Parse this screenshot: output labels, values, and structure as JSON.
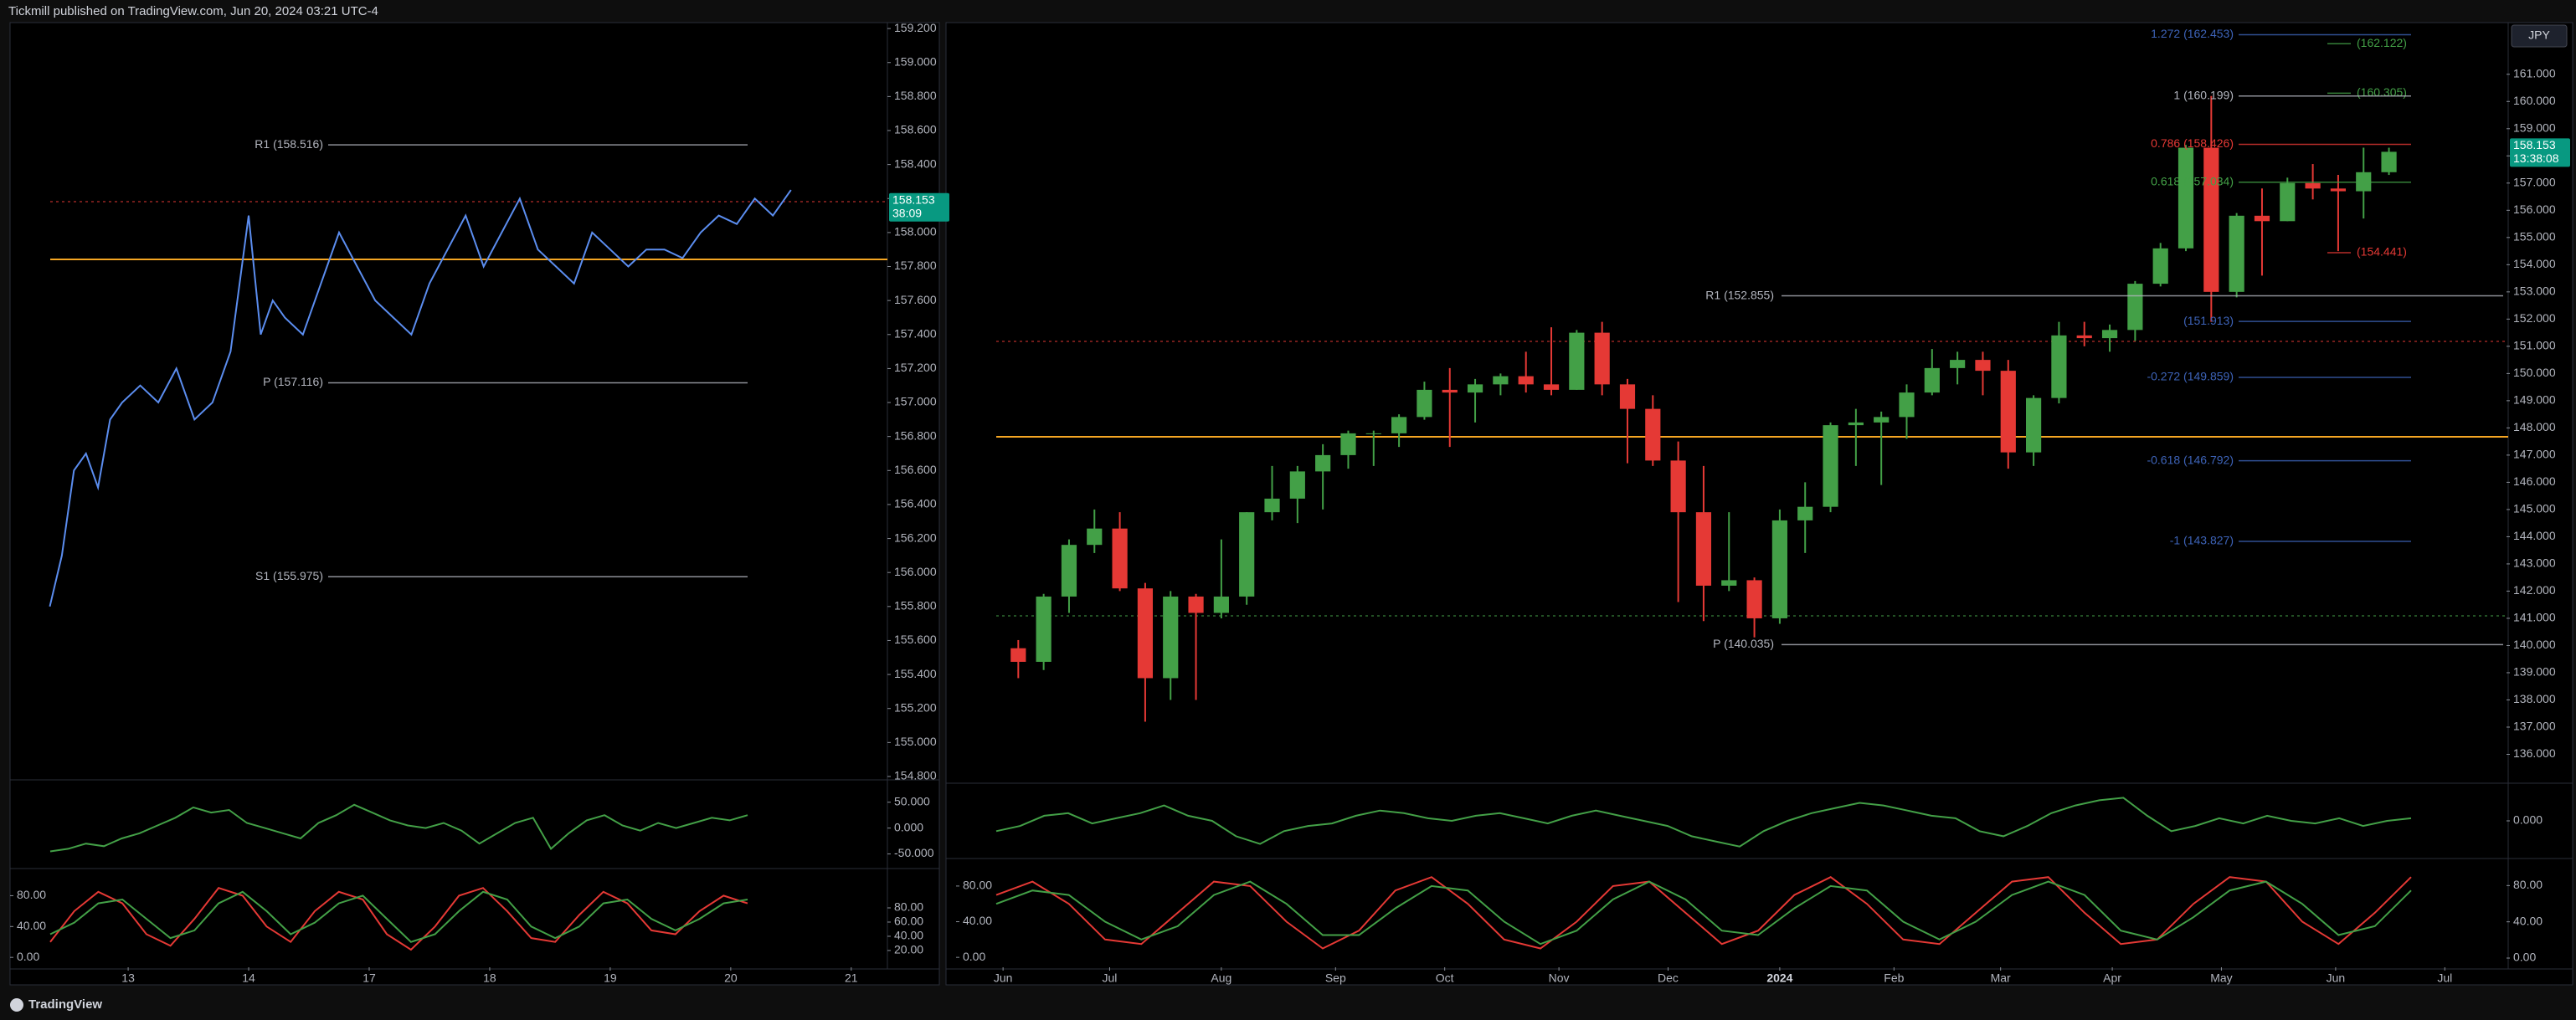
{
  "header": {
    "title": "Tickmill published on TradingView.com, Jun 20, 2024 03:21 UTC-4"
  },
  "footer": {
    "brand": "TradingView"
  },
  "chart_data": [
    {
      "type": "line",
      "color": "#5b8def",
      "x": [
        -0.65,
        -0.55,
        -0.45,
        -0.35,
        -0.25,
        -0.15,
        -0.05,
        0.1,
        0.25,
        0.4,
        0.55,
        0.7,
        0.85,
        1.0,
        1.1,
        1.2,
        1.3,
        1.45,
        1.6,
        1.75,
        1.9,
        2.05,
        2.2,
        2.35,
        2.5,
        2.65,
        2.8,
        2.95,
        3.1,
        3.25,
        3.4,
        3.55,
        3.7,
        3.85,
        4.0,
        4.15,
        4.3,
        4.45,
        4.6,
        4.75,
        4.9,
        5.05,
        5.2,
        5.35,
        5.5
      ],
      "values": [
        155.8,
        156.1,
        156.6,
        156.7,
        156.5,
        156.9,
        157.0,
        157.1,
        157.0,
        157.2,
        156.9,
        157.0,
        157.3,
        158.1,
        157.4,
        157.6,
        157.5,
        157.4,
        157.7,
        158.0,
        157.8,
        157.6,
        157.5,
        157.4,
        157.7,
        157.9,
        158.1,
        157.8,
        158.0,
        158.2,
        157.9,
        157.8,
        157.7,
        158.0,
        157.9,
        157.8,
        157.9,
        157.9,
        157.85,
        158.0,
        158.1,
        158.05,
        158.2,
        158.1,
        158.25
      ],
      "xlim": [
        -0.98,
        6.3
      ],
      "xticks": [
        {
          "value": 0,
          "label": "13"
        },
        {
          "value": 1,
          "label": "14"
        },
        {
          "value": 2,
          "label": "17"
        },
        {
          "value": 3,
          "label": "18"
        },
        {
          "value": 4,
          "label": "19"
        },
        {
          "value": 5,
          "label": "20"
        },
        {
          "value": 6,
          "label": "21"
        }
      ],
      "ylim": [
        154.79,
        159.235
      ],
      "yticks": [
        {
          "value": 154.8,
          "label": "154.800"
        },
        {
          "value": 155.0,
          "label": "155.000"
        },
        {
          "value": 155.2,
          "label": "155.200"
        },
        {
          "value": 155.4,
          "label": "155.400"
        },
        {
          "value": 155.6,
          "label": "155.600"
        },
        {
          "value": 155.8,
          "label": "155.800"
        },
        {
          "value": 156.0,
          "label": "156.000"
        },
        {
          "value": 156.2,
          "label": "156.200"
        },
        {
          "value": 156.4,
          "label": "156.400"
        },
        {
          "value": 156.6,
          "label": "156.600"
        },
        {
          "value": 156.8,
          "label": "156.800"
        },
        {
          "value": 157.0,
          "label": "157.000"
        },
        {
          "value": 157.2,
          "label": "157.200"
        },
        {
          "value": 157.4,
          "label": "157.400"
        },
        {
          "value": 157.6,
          "label": "157.600"
        },
        {
          "value": 157.8,
          "label": "157.800"
        },
        {
          "value": 158.0,
          "label": "158.000"
        },
        {
          "value": 158.2,
          "label": "158.200"
        },
        {
          "value": 158.4,
          "label": "158.400"
        },
        {
          "value": 158.6,
          "label": "158.600"
        },
        {
          "value": 158.8,
          "label": "158.800"
        },
        {
          "value": 159.0,
          "label": "159.000"
        },
        {
          "value": 159.2,
          "label": "159.200"
        }
      ],
      "annotations": [
        {
          "text": "R1 (158.516)",
          "value": 158.516,
          "color": "#b2b5be"
        },
        {
          "text": "P (157.116)",
          "value": 157.116,
          "color": "#b2b5be"
        },
        {
          "text": "S1 (155.975)",
          "value": 155.975,
          "color": "#b2b5be"
        }
      ],
      "last_price": 158.153,
      "countdown": "38:09",
      "last_color": "#089981"
    },
    {
      "type": "line",
      "color": "#43a047",
      "values": [
        -45,
        -40,
        -30,
        -35,
        -20,
        -10,
        5,
        20,
        40,
        30,
        35,
        10,
        0,
        -10,
        -20,
        10,
        25,
        45,
        30,
        15,
        5,
        0,
        10,
        -5,
        -30,
        -10,
        10,
        20,
        -40,
        -10,
        15,
        25,
        5,
        -5,
        10,
        0,
        10,
        20,
        15,
        25
      ],
      "ylim": [
        -75,
        90
      ],
      "yticks": [
        {
          "value": 50,
          "label": "50.000"
        },
        {
          "value": 0,
          "label": "0.000"
        },
        {
          "value": -50,
          "label": "-50.000"
        }
      ]
    },
    {
      "type": "line",
      "series": [
        {
          "color": "#e53935",
          "values": [
            20,
            60,
            85,
            70,
            30,
            15,
            50,
            90,
            80,
            40,
            20,
            60,
            85,
            75,
            30,
            10,
            40,
            80,
            90,
            60,
            25,
            20,
            55,
            85,
            70,
            35,
            30,
            60,
            80,
            70
          ]
        },
        {
          "color": "#43a047",
          "values": [
            30,
            45,
            70,
            75,
            50,
            25,
            35,
            70,
            85,
            60,
            30,
            45,
            70,
            80,
            50,
            20,
            30,
            60,
            85,
            75,
            40,
            25,
            40,
            70,
            75,
            50,
            35,
            50,
            70,
            75
          ]
        }
      ],
      "ylim": [
        -15,
        113
      ],
      "yticks": [
        {
          "value": 80,
          "label": "80.00"
        },
        {
          "value": 40,
          "label": "40.00"
        },
        {
          "value": 0,
          "label": "0.00"
        }
      ],
      "y2lim": [
        -6,
        133
      ],
      "y2ticks": [
        {
          "value": 80,
          "label": "80.00"
        },
        {
          "value": 60,
          "label": "60.00"
        },
        {
          "value": 40,
          "label": "40.00"
        },
        {
          "value": 20,
          "label": "20.00"
        }
      ]
    },
    {
      "type": "candlestick",
      "up_color": "#43a047",
      "down_color": "#e53935",
      "x": [
        0,
        1,
        2,
        3,
        4,
        5,
        6,
        7,
        8,
        9,
        10,
        11,
        12,
        13,
        14,
        15,
        16,
        17,
        18,
        19,
        20,
        21,
        22,
        23,
        24,
        25,
        26,
        27,
        28,
        29,
        30,
        31,
        32,
        33,
        34,
        35,
        36,
        37,
        38,
        39,
        40,
        41,
        42,
        43,
        44,
        45,
        46,
        47,
        48,
        49,
        50,
        51,
        52,
        53,
        54
      ],
      "open": [
        139.9,
        139.4,
        141.8,
        143.7,
        144.3,
        142.1,
        138.8,
        141.8,
        141.2,
        141.8,
        144.9,
        145.4,
        146.4,
        147.0,
        147.8,
        147.8,
        148.4,
        149.4,
        149.3,
        149.6,
        149.9,
        149.6,
        149.4,
        151.5,
        149.6,
        148.7,
        146.8,
        144.9,
        142.2,
        142.4,
        141.0,
        144.6,
        145.1,
        148.1,
        148.2,
        148.4,
        149.3,
        150.2,
        150.5,
        150.1,
        147.1,
        149.1,
        151.4,
        151.3,
        151.6,
        153.3,
        154.6,
        158.3,
        153.0,
        155.8,
        155.6,
        157.0,
        156.8,
        156.7,
        157.4
      ],
      "high": [
        140.2,
        141.9,
        143.9,
        145.0,
        144.9,
        142.3,
        142.0,
        141.9,
        143.9,
        144.9,
        146.6,
        146.6,
        147.4,
        147.9,
        147.9,
        148.5,
        149.7,
        150.2,
        149.8,
        150.0,
        150.8,
        151.7,
        151.6,
        151.9,
        149.8,
        149.2,
        147.5,
        146.6,
        144.9,
        142.5,
        145.0,
        146.0,
        148.2,
        148.7,
        148.6,
        149.6,
        150.9,
        150.8,
        150.8,
        150.5,
        149.2,
        151.9,
        151.9,
        151.8,
        153.4,
        154.8,
        158.4,
        160.2,
        155.9,
        156.8,
        157.2,
        157.7,
        157.3,
        158.3,
        158.3
      ],
      "low": [
        138.8,
        139.1,
        141.2,
        143.4,
        142.0,
        137.2,
        138.0,
        138.0,
        141.0,
        141.5,
        144.6,
        144.5,
        145.0,
        146.5,
        146.6,
        147.3,
        148.3,
        147.3,
        148.2,
        149.2,
        149.3,
        149.2,
        149.4,
        149.2,
        146.7,
        146.6,
        141.6,
        140.9,
        142.0,
        140.3,
        140.8,
        143.4,
        144.9,
        146.6,
        145.9,
        147.6,
        149.2,
        149.6,
        149.2,
        146.5,
        146.6,
        148.9,
        151.0,
        150.8,
        151.2,
        153.2,
        154.5,
        151.9,
        152.8,
        153.6,
        155.6,
        156.4,
        154.5,
        155.7,
        157.3
      ],
      "close": [
        139.4,
        141.8,
        143.7,
        144.3,
        142.1,
        138.8,
        141.8,
        141.2,
        141.8,
        144.9,
        145.4,
        146.4,
        147.0,
        147.8,
        147.8,
        148.4,
        149.4,
        149.3,
        149.6,
        149.9,
        149.6,
        149.4,
        151.5,
        149.6,
        148.7,
        146.8,
        144.9,
        142.2,
        142.4,
        141.0,
        144.6,
        145.1,
        148.1,
        148.2,
        148.4,
        149.3,
        150.2,
        150.5,
        150.1,
        147.1,
        149.1,
        151.4,
        151.3,
        151.6,
        153.3,
        154.6,
        158.3,
        153.0,
        155.8,
        155.6,
        157.0,
        156.8,
        156.7,
        157.4,
        158.15
      ],
      "xlim": [
        -1,
        58.5
      ],
      "xticks": [
        {
          "value": -0.6,
          "label": "Jun"
        },
        {
          "value": 3.6,
          "label": "Jul"
        },
        {
          "value": 8,
          "label": "Aug"
        },
        {
          "value": 12.5,
          "label": "Sep"
        },
        {
          "value": 16.8,
          "label": "Oct"
        },
        {
          "value": 21.3,
          "label": "Nov"
        },
        {
          "value": 25.6,
          "label": "Dec"
        },
        {
          "value": 30,
          "label": "2024"
        },
        {
          "value": 34.5,
          "label": "Feb"
        },
        {
          "value": 38.7,
          "label": "Mar"
        },
        {
          "value": 43.1,
          "label": "Apr"
        },
        {
          "value": 47.4,
          "label": "May"
        },
        {
          "value": 51.9,
          "label": "Jun"
        },
        {
          "value": 56.2,
          "label": "Jul"
        }
      ],
      "ylim": [
        135.0,
        162.9
      ],
      "yticks": [
        {
          "value": 136,
          "label": "136.000"
        },
        {
          "value": 137,
          "label": "137.000"
        },
        {
          "value": 138,
          "label": "138.000"
        },
        {
          "value": 139,
          "label": "139.000"
        },
        {
          "value": 140,
          "label": "140.000"
        },
        {
          "value": 141,
          "label": "141.000"
        },
        {
          "value": 142,
          "label": "142.000"
        },
        {
          "value": 143,
          "label": "143.000"
        },
        {
          "value": 144,
          "label": "144.000"
        },
        {
          "value": 145,
          "label": "145.000"
        },
        {
          "value": 146,
          "label": "146.000"
        },
        {
          "value": 147,
          "label": "147.000"
        },
        {
          "value": 148,
          "label": "148.000"
        },
        {
          "value": 149,
          "label": "149.000"
        },
        {
          "value": 150,
          "label": "150.000"
        },
        {
          "value": 151,
          "label": "151.000"
        },
        {
          "value": 152,
          "label": "152.000"
        },
        {
          "value": 153,
          "label": "153.000"
        },
        {
          "value": 154,
          "label": "154.000"
        },
        {
          "value": 155,
          "label": "155.000"
        },
        {
          "value": 156,
          "label": "156.000"
        },
        {
          "value": 157,
          "label": "157.000"
        },
        {
          "value": 158,
          "label": "158.000"
        },
        {
          "value": 159,
          "label": "159.000"
        },
        {
          "value": 160,
          "label": "160.000"
        },
        {
          "value": 161,
          "label": "161.000"
        }
      ],
      "annotations": [
        {
          "text": "1.272 (162.453)",
          "value": 162.453,
          "color": "#3d63b8"
        },
        {
          "text": "(162.122)",
          "value": 162.122,
          "color": "#43a047"
        },
        {
          "text": "(160.305)",
          "value": 160.305,
          "color": "#43a047"
        },
        {
          "text": "1 (160.199)",
          "value": 160.199,
          "color": "#b2b5be"
        },
        {
          "text": "0.786 (158.426)",
          "value": 158.426,
          "color": "#e53935"
        },
        {
          "text": "0.618 (157.034)",
          "value": 157.034,
          "color": "#43a047"
        },
        {
          "text": "(154.441)",
          "value": 154.441,
          "color": "#e53935"
        },
        {
          "text": "R1 (152.855)",
          "value": 152.855,
          "color": "#b2b5be"
        },
        {
          "text": "(151.913)",
          "value": 151.913,
          "color": "#3d63b8"
        },
        {
          "text": "-0.272 (149.859)",
          "value": 149.859,
          "color": "#3d63b8"
        },
        {
          "text": "-0.618 (146.792)",
          "value": 146.792,
          "color": "#3d63b8"
        },
        {
          "text": "-1 (143.827)",
          "value": 143.827,
          "color": "#3d63b8"
        },
        {
          "text": "P (140.035)",
          "value": 140.035,
          "color": "#b2b5be"
        }
      ],
      "last_price": 158.153,
      "countdown": "13:38:08",
      "last_color": "#089981",
      "currency": "JPY"
    },
    {
      "type": "line",
      "color": "#43a047",
      "values": [
        -20,
        -10,
        10,
        15,
        -5,
        5,
        15,
        30,
        10,
        0,
        -30,
        -45,
        -20,
        -10,
        -5,
        10,
        20,
        15,
        5,
        0,
        10,
        15,
        5,
        -5,
        10,
        20,
        10,
        0,
        -10,
        -30,
        -40,
        -50,
        -20,
        0,
        15,
        25,
        35,
        30,
        20,
        10,
        5,
        -20,
        -30,
        -10,
        15,
        30,
        40,
        45,
        10,
        -20,
        -10,
        5,
        -5,
        10,
        0,
        -5,
        5,
        -10,
        0,
        5
      ],
      "ylim": [
        -70,
        70
      ],
      "yticks": [
        {
          "value": 0,
          "label": "0.000"
        }
      ]
    },
    {
      "type": "line",
      "series": [
        {
          "color": "#e53935",
          "values": [
            70,
            85,
            60,
            20,
            15,
            50,
            85,
            80,
            40,
            10,
            30,
            75,
            90,
            60,
            20,
            10,
            40,
            80,
            85,
            50,
            15,
            30,
            70,
            90,
            60,
            20,
            15,
            50,
            85,
            90,
            50,
            15,
            20,
            60,
            90,
            85,
            40,
            15,
            50,
            90
          ]
        },
        {
          "color": "#43a047",
          "values": [
            60,
            75,
            70,
            40,
            20,
            35,
            70,
            85,
            60,
            25,
            25,
            55,
            80,
            75,
            40,
            15,
            30,
            65,
            85,
            65,
            30,
            25,
            55,
            80,
            75,
            40,
            20,
            40,
            70,
            85,
            70,
            30,
            20,
            45,
            75,
            85,
            60,
            25,
            35,
            75
          ]
        }
      ],
      "ylim": [
        -13,
        109
      ],
      "yticks": [
        {
          "value": 80,
          "label": "80.00"
        },
        {
          "value": 40,
          "label": "40.00"
        },
        {
          "value": 0,
          "label": "0.00"
        }
      ],
      "y2lim": [
        -12,
        108
      ],
      "y2ticks": [
        {
          "value": 80,
          "label": "80.00"
        },
        {
          "value": 40,
          "label": "40.00"
        },
        {
          "value": 0,
          "label": "0.00"
        }
      ]
    }
  ]
}
